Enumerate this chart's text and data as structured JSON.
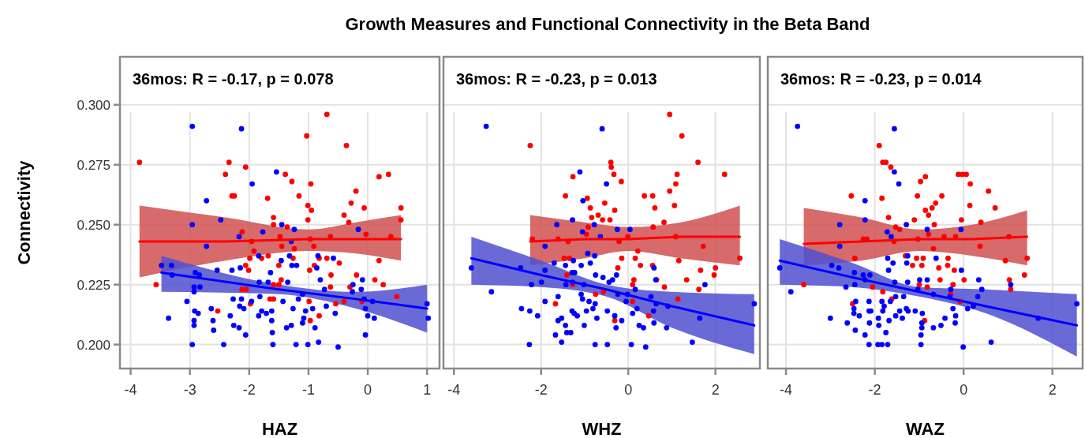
{
  "chart_data": [
    {
      "type": "scatter",
      "title": "Growth Measures and Functional Connectivity in the Beta Band",
      "xlabel": "HAZ",
      "ylabel": "Connectivity",
      "annotations": [
        "36mos: R = -0.17, p = 0.078"
      ],
      "grid": true,
      "xlim": [
        -4.18,
        1.21
      ],
      "xticks": [
        -4,
        -3,
        -2,
        -1,
        0,
        1
      ],
      "ylim": [
        0.19,
        0.32
      ],
      "yticks": [
        {
          "value": 0.2,
          "label": "0.200"
        },
        0.225,
        {
          "value": 0.25,
          "label": "0.250"
        },
        0.275,
        {
          "value": 0.3,
          "label": "0.300"
        }
      ],
      "series": [
        {
          "type": "scatter",
          "marker": "circle",
          "color": "#ff0000",
          "x": [
            -3.85,
            -3.57,
            -2.34,
            -2.4,
            -2.29,
            -2.25,
            -2.06,
            -2.12,
            -2.06,
            -2.01,
            -1.99,
            -1.92,
            -2.12,
            -2.05,
            -1.98,
            -2.53,
            -1.69,
            -1.79,
            -1.68,
            -1.59,
            -1.59,
            -1.39,
            -1.28,
            -1.16,
            -1.36,
            -1.48,
            -1.45,
            -1.24,
            -1.26,
            -1.5,
            -1.46,
            -1.5,
            -1.59,
            -1.65,
            -1.59,
            -1.03,
            -0.96,
            -1.01,
            -0.95,
            -1.01,
            -0.97,
            -0.91,
            -0.98,
            -0.9,
            -0.82,
            -0.69,
            -0.63,
            -0.62,
            -0.63,
            -0.69,
            -0.36,
            -0.2,
            -0.28,
            -0.06,
            -0.4,
            -0.32,
            -0.03,
            -0.48,
            -0.19,
            -0.3,
            -0.4,
            -0.54,
            -0.1,
            0.12,
            0.26,
            0.19,
            0.19,
            0.35,
            0.39,
            0.56,
            0.56,
            0.49,
            -0.97,
            -0.82,
            -0.99,
            -1.96
          ],
          "values": [
            0.276,
            0.225,
            0.276,
            0.271,
            0.262,
            0.262,
            0.274,
            0.247,
            0.233,
            0.231,
            0.236,
            0.239,
            0.223,
            0.223,
            0.217,
            0.214,
            0.261,
            0.236,
            0.237,
            0.253,
            0.25,
            0.271,
            0.268,
            0.262,
            0.249,
            0.245,
            0.241,
            0.24,
            0.236,
            0.233,
            0.227,
            0.225,
            0.219,
            0.219,
            0.225,
            0.287,
            0.267,
            0.258,
            0.256,
            0.252,
            0.244,
            0.241,
            0.231,
            0.233,
            0.236,
            0.236,
            0.245,
            0.229,
            0.224,
            0.296,
            0.283,
            0.264,
            0.259,
            0.257,
            0.254,
            0.251,
            0.246,
            0.234,
            0.229,
            0.224,
            0.218,
            0.217,
            0.218,
            0.227,
            0.225,
            0.235,
            0.27,
            0.271,
            0.245,
            0.257,
            0.252,
            0.22,
            0.21,
            0.212,
            0.218,
            0.243
          ]
        },
        {
          "type": "scatter",
          "marker": "circle",
          "color": "#0000ff",
          "x": [
            -2.96,
            -2.13,
            -1.54,
            -1.95,
            -2.72,
            -2.48,
            -2.96,
            -2.72,
            -2.17,
            -1.77,
            -1.45,
            -1.24,
            -1.29,
            -3.48,
            -3.31,
            -3.3,
            -2.91,
            -2.84,
            -2.93,
            -2.83,
            -2.93,
            -3.05,
            -3.36,
            -2.92,
            -2.86,
            -2.93,
            -2.93,
            -2.96,
            -2.64,
            -2.61,
            -2.6,
            -2.54,
            -2.43,
            -2.32,
            -2.29,
            -2.27,
            -2.26,
            -2.17,
            -2.15,
            -2.13,
            -2.16,
            -2.09,
            -2.06,
            -1.96,
            -1.84,
            -1.83,
            -1.82,
            -1.84,
            -1.79,
            -1.71,
            -1.68,
            -1.64,
            -1.62,
            -1.62,
            -1.61,
            -1.6,
            -1.46,
            -1.43,
            -1.35,
            -1.32,
            -1.28,
            -1.26,
            -1.37,
            -1.29,
            -1.2,
            -1.21,
            -1.17,
            -1.1,
            -1.05,
            -1.08,
            -1.1,
            -1.01,
            -0.93,
            -0.89,
            -0.86,
            -0.84,
            -0.8,
            -0.83,
            -0.73,
            -0.7,
            -0.58,
            -0.55,
            -0.5,
            -0.25,
            -0.26,
            -0.16,
            -0.11,
            -0.09,
            -0.06,
            -0.04,
            0.0,
            -0.04,
            0.08,
            0.11,
            1.0,
            1.02
          ],
          "values": [
            0.291,
            0.29,
            0.272,
            0.267,
            0.26,
            0.252,
            0.25,
            0.241,
            0.245,
            0.247,
            0.25,
            0.248,
            0.243,
            0.233,
            0.233,
            0.229,
            0.23,
            0.229,
            0.224,
            0.224,
            0.222,
            0.218,
            0.211,
            0.214,
            0.213,
            0.21,
            0.208,
            0.2,
            0.215,
            0.21,
            0.206,
            0.231,
            0.2,
            0.212,
            0.231,
            0.219,
            0.208,
            0.207,
            0.232,
            0.219,
            0.216,
            0.215,
            0.204,
            0.218,
            0.237,
            0.226,
            0.22,
            0.212,
            0.214,
            0.213,
            0.226,
            0.23,
            0.214,
            0.21,
            0.205,
            0.2,
            0.235,
            0.218,
            0.226,
            0.237,
            0.233,
            0.215,
            0.207,
            0.208,
            0.233,
            0.2,
            0.219,
            0.221,
            0.214,
            0.211,
            0.209,
            0.2,
            0.215,
            0.207,
            0.232,
            0.237,
            0.227,
            0.201,
            0.223,
            0.216,
            0.236,
            0.213,
            0.199,
            0.225,
            0.222,
            0.248,
            0.223,
            0.227,
            0.219,
            0.215,
            0.212,
            0.204,
            0.218,
            0.211,
            0.217,
            0.211
          ]
        },
        {
          "type": "line",
          "color": "#ff0000",
          "x": [
            -3.85,
            -2.4,
            -1.0,
            -0.2,
            0.56
          ],
          "values": [
            0.243,
            0.243,
            0.244,
            0.244,
            0.244
          ],
          "lower": [
            0.228,
            0.235,
            0.239,
            0.238,
            0.235
          ],
          "upper": [
            0.258,
            0.253,
            0.248,
            0.251,
            0.254
          ]
        },
        {
          "type": "line",
          "color": "#0000ff",
          "x": [
            -3.48,
            -1.5,
            -0.2,
            1.0
          ],
          "values": [
            0.23,
            0.223,
            0.219,
            0.215
          ],
          "lower": [
            0.222,
            0.221,
            0.215,
            0.205
          ],
          "upper": [
            0.237,
            0.225,
            0.222,
            0.225
          ]
        }
      ]
    },
    {
      "type": "scatter",
      "xlabel": "WHZ",
      "annotations": [
        "36mos: R = -0.23, p = 0.013"
      ],
      "grid": true,
      "tick_labels": "x",
      "xlim": [
        -4.24,
        3.02
      ],
      "xticks": [
        -4,
        -2,
        0,
        2
      ],
      "ylim": [
        0.19,
        0.32
      ],
      "yticks": [
        0.2,
        0.225,
        0.25,
        0.275,
        0.3
      ],
      "series": [
        {
          "type": "scatter",
          "marker": "circle",
          "color": "#ff0000",
          "x": [
            -2.25,
            -1.27,
            -1.44,
            -0.94,
            -0.87,
            -0.69,
            -0.84,
            -0.59,
            -0.42,
            -0.54,
            -0.31,
            -0.4,
            -0.39,
            -0.33,
            -0.16,
            0.37,
            0.56,
            0.61,
            0.95,
            1.23,
            1.6,
            1.12,
            1.09,
            0.95,
            1.06,
            0.82,
            0.57,
            -0.92,
            -0.96,
            -2.2,
            -1.61,
            -1.38,
            -0.21,
            -0.01,
            1.09,
            1.72,
            2.21,
            2.56,
            -1.47,
            -1.35,
            -0.15,
            0.22,
            0.16,
            -0.24,
            0.28,
            0.56,
            1.16,
            1.66,
            2.0,
            1.97,
            1.34,
            1.62,
            -1.41,
            -1.28,
            -0.75,
            -0.57,
            0.13,
            0.1,
            0.65,
            0.83,
            1.14,
            0.1,
            -1.67,
            0.47,
            -0.31
          ],
          "values": [
            0.283,
            0.27,
            0.262,
            0.261,
            0.257,
            0.254,
            0.253,
            0.252,
            0.252,
            0.259,
            0.256,
            0.276,
            0.274,
            0.271,
            0.268,
            0.262,
            0.262,
            0.257,
            0.296,
            0.287,
            0.276,
            0.271,
            0.267,
            0.264,
            0.258,
            0.251,
            0.249,
            0.249,
            0.246,
            0.244,
            0.244,
            0.243,
            0.243,
            0.245,
            0.245,
            0.241,
            0.271,
            0.236,
            0.236,
            0.236,
            0.236,
            0.239,
            0.236,
            0.232,
            0.233,
            0.233,
            0.235,
            0.231,
            0.232,
            0.229,
            0.227,
            0.223,
            0.229,
            0.225,
            0.221,
            0.222,
            0.227,
            0.225,
            0.227,
            0.224,
            0.219,
            0.218,
            0.217,
            0.212,
            0.21
          ]
        },
        {
          "type": "scatter",
          "marker": "circle",
          "color": "#0000ff",
          "x": [
            -3.26,
            -0.6,
            -1.11,
            -0.5,
            -1.04,
            -1.28,
            -1.64,
            -1.05,
            -0.78,
            -0.64,
            -0.25,
            0.04,
            -1.91,
            -3.6,
            -2.47,
            -1.91,
            -2.22,
            -1.99,
            -3.14,
            -1.7,
            -1.44,
            -1.26,
            -1.08,
            -1.29,
            -1.23,
            -0.93,
            -0.87,
            -0.77,
            -1.43,
            -1.28,
            -1.02,
            -1.08,
            -1.61,
            -1.91,
            -2.45,
            -2.26,
            -2.08,
            -1.05,
            -0.9,
            -0.76,
            -0.75,
            -0.58,
            -0.44,
            -0.36,
            -0.27,
            -0.24,
            -0.02,
            -0.05,
            0.16,
            0.2,
            0.1,
            0.52,
            0.63,
            0.59,
            0.64,
            0.58,
            0.91,
            1.76,
            2.89,
            1.64,
            0.59,
            0.88,
            0.35,
            0.25,
            -1.61,
            -1.53,
            -1.29,
            -1.24,
            -1.17,
            -0.96,
            -0.81,
            -0.72,
            -0.48,
            -0.31,
            -0.15,
            -0.28,
            -1.01,
            -1.44,
            -1.41,
            -1.32,
            -1.67,
            -1.53,
            -2.27,
            -0.76,
            -0.48,
            0.07,
            0.4,
            1.47
          ],
          "values": [
            0.291,
            0.29,
            0.272,
            0.267,
            0.26,
            0.252,
            0.25,
            0.247,
            0.25,
            0.245,
            0.248,
            0.248,
            0.241,
            0.232,
            0.232,
            0.231,
            0.225,
            0.226,
            0.222,
            0.234,
            0.233,
            0.235,
            0.233,
            0.23,
            0.23,
            0.238,
            0.234,
            0.237,
            0.225,
            0.226,
            0.225,
            0.221,
            0.22,
            0.218,
            0.215,
            0.214,
            0.212,
            0.219,
            0.218,
            0.217,
            0.229,
            0.228,
            0.226,
            0.227,
            0.229,
            0.221,
            0.221,
            0.218,
            0.223,
            0.215,
            0.213,
            0.22,
            0.227,
            0.232,
            0.217,
            0.214,
            0.216,
            0.225,
            0.217,
            0.211,
            0.209,
            0.207,
            0.207,
            0.208,
            0.21,
            0.211,
            0.214,
            0.213,
            0.212,
            0.214,
            0.215,
            0.211,
            0.214,
            0.212,
            0.21,
            0.207,
            0.208,
            0.208,
            0.205,
            0.205,
            0.204,
            0.201,
            0.2,
            0.2,
            0.2,
            0.2,
            0.199,
            0.201
          ]
        },
        {
          "type": "line",
          "color": "#ff0000",
          "x": [
            -2.25,
            -1.0,
            0.0,
            1.2,
            2.56
          ],
          "values": [
            0.243,
            0.244,
            0.244,
            0.245,
            0.245
          ],
          "lower": [
            0.233,
            0.236,
            0.239,
            0.236,
            0.233
          ],
          "upper": [
            0.254,
            0.251,
            0.249,
            0.251,
            0.258
          ]
        },
        {
          "type": "line",
          "color": "#0000ff",
          "x": [
            -3.6,
            -2.0,
            -0.5,
            1.0,
            2.89
          ],
          "values": [
            0.236,
            0.229,
            0.223,
            0.216,
            0.208
          ],
          "lower": [
            0.225,
            0.224,
            0.22,
            0.207,
            0.196
          ],
          "upper": [
            0.245,
            0.235,
            0.225,
            0.222,
            0.221
          ]
        }
      ]
    },
    {
      "type": "scatter",
      "xlabel": "WAZ",
      "annotations": [
        "36mos: R = -0.23, p = 0.014"
      ],
      "grid": true,
      "tick_labels": "x",
      "xlim": [
        -4.41,
        2.68
      ],
      "xticks": [
        -4,
        -2,
        0,
        2
      ],
      "ylim": [
        0.19,
        0.32
      ],
      "yticks": [
        0.2,
        0.225,
        0.25,
        0.275,
        0.3
      ],
      "series": [
        {
          "type": "scatter",
          "marker": "circle",
          "color": "#ff0000",
          "x": [
            -1.9,
            -1.82,
            -1.75,
            -1.64,
            -0.97,
            -0.86,
            -1.04,
            -1.84,
            -2.53,
            -1.69,
            -1.53,
            -1.44,
            -0.86,
            -0.71,
            -0.63,
            -0.49,
            -0.79,
            -1.11,
            -0.66,
            -0.12,
            -0.03,
            0.06,
            0.15,
            0.56,
            0.71,
            0.14,
            -0.05,
            0.39,
            -2.26,
            -2.18,
            -1.57,
            -1.03,
            -0.79,
            -0.44,
            -0.18,
            -2.45,
            -1.31,
            -1.06,
            -0.91,
            -0.68,
            -0.35,
            0.37,
            1.02,
            0.94,
            1.43,
            -1.15,
            -0.94,
            -0.56,
            -0.36,
            -0.21,
            -0.53,
            -0.24,
            0.01,
            -1.0,
            -0.82,
            -0.29,
            1.03,
            1.37,
            1.06,
            -3.6,
            -2.5,
            -2.05,
            -1.62,
            -0.08,
            -0.88,
            -1.82
          ],
          "values": [
            0.283,
            0.276,
            0.276,
            0.274,
            0.268,
            0.27,
            0.262,
            0.261,
            0.262,
            0.253,
            0.249,
            0.248,
            0.256,
            0.257,
            0.259,
            0.262,
            0.254,
            0.252,
            0.25,
            0.271,
            0.271,
            0.271,
            0.267,
            0.264,
            0.257,
            0.258,
            0.252,
            0.251,
            0.244,
            0.244,
            0.243,
            0.244,
            0.246,
            0.245,
            0.245,
            0.236,
            0.237,
            0.236,
            0.236,
            0.24,
            0.236,
            0.241,
            0.245,
            0.235,
            0.236,
            0.233,
            0.233,
            0.232,
            0.233,
            0.231,
            0.227,
            0.225,
            0.227,
            0.225,
            0.224,
            0.221,
            0.227,
            0.229,
            0.223,
            0.225,
            0.217,
            0.224,
            0.219,
            0.218,
            0.21,
            0.222
          ]
        },
        {
          "type": "scatter",
          "marker": "circle",
          "color": "#0000ff",
          "x": [
            -3.74,
            -1.56,
            -1.56,
            -1.46,
            -2.22,
            -2.22,
            -1.29,
            -2.79,
            -0.82,
            -0.06,
            -2.79,
            -1.72,
            -1.63,
            -4.14,
            -3.89,
            -2.97,
            -2.81,
            -2.65,
            -2.46,
            -2.45,
            -2.26,
            -2.22,
            -2.11,
            -2.09,
            -1.69,
            -1.59,
            -1.71,
            -1.55,
            -1.53,
            -1.26,
            -1.28,
            -1.26,
            -0.99,
            -0.82,
            -0.62,
            -0.05,
            0.34,
            0.41,
            0.32,
            1.06,
            2.55,
            1.68,
            -2.43,
            -2.47,
            -2.47,
            -2.35,
            -2.13,
            -2.13,
            -2.12,
            -2.62,
            -3.0,
            -2.44,
            -2.22,
            -1.84,
            -1.79,
            -1.82,
            -1.92,
            -1.91,
            -1.68,
            -1.53,
            -1.44,
            -1.38,
            -1.29,
            -1.25,
            -1.09,
            -0.93,
            -0.94,
            -0.94,
            -0.96,
            -1.75,
            -1.93,
            -1.84,
            -1.71,
            -2.13,
            -0.96,
            -0.68,
            -0.51,
            -0.42,
            -0.19,
            -0.18,
            -0.24,
            -0.31,
            0.09,
            0.22,
            -0.01,
            0.62,
            -1.65,
            -1.35,
            -1.03,
            -0.68,
            -0.29
          ],
          "values": [
            0.291,
            0.29,
            0.272,
            0.267,
            0.26,
            0.252,
            0.25,
            0.25,
            0.248,
            0.248,
            0.241,
            0.247,
            0.245,
            0.232,
            0.222,
            0.233,
            0.232,
            0.224,
            0.23,
            0.225,
            0.229,
            0.227,
            0.229,
            0.214,
            0.231,
            0.234,
            0.236,
            0.226,
            0.22,
            0.237,
            0.234,
            0.226,
            0.227,
            0.227,
            0.236,
            0.231,
            0.227,
            0.223,
            0.22,
            0.225,
            0.217,
            0.211,
            0.218,
            0.215,
            0.213,
            0.212,
            0.218,
            0.214,
            0.209,
            0.209,
            0.211,
            0.206,
            0.204,
            0.218,
            0.216,
            0.214,
            0.211,
            0.208,
            0.21,
            0.212,
            0.214,
            0.211,
            0.215,
            0.214,
            0.214,
            0.213,
            0.209,
            0.207,
            0.204,
            0.205,
            0.2,
            0.2,
            0.2,
            0.2,
            0.2,
            0.207,
            0.208,
            0.211,
            0.209,
            0.212,
            0.215,
            0.22,
            0.215,
            0.216,
            0.199,
            0.201,
            0.218,
            0.22,
            0.223,
            0.221,
            0.223
          ]
        },
        {
          "type": "line",
          "color": "#ff0000",
          "x": [
            -3.6,
            -2.3,
            -1.0,
            0.2,
            1.43
          ],
          "values": [
            0.242,
            0.243,
            0.244,
            0.244,
            0.245
          ],
          "lower": [
            0.233,
            0.235,
            0.239,
            0.237,
            0.233
          ],
          "upper": [
            0.257,
            0.253,
            0.248,
            0.25,
            0.256
          ]
        },
        {
          "type": "line",
          "color": "#0000ff",
          "x": [
            -4.14,
            -2.5,
            -1.0,
            0.5,
            2.55
          ],
          "values": [
            0.235,
            0.228,
            0.222,
            0.216,
            0.208
          ],
          "lower": [
            0.225,
            0.224,
            0.22,
            0.213,
            0.195
          ],
          "upper": [
            0.244,
            0.234,
            0.224,
            0.223,
            0.221
          ]
        }
      ]
    }
  ]
}
